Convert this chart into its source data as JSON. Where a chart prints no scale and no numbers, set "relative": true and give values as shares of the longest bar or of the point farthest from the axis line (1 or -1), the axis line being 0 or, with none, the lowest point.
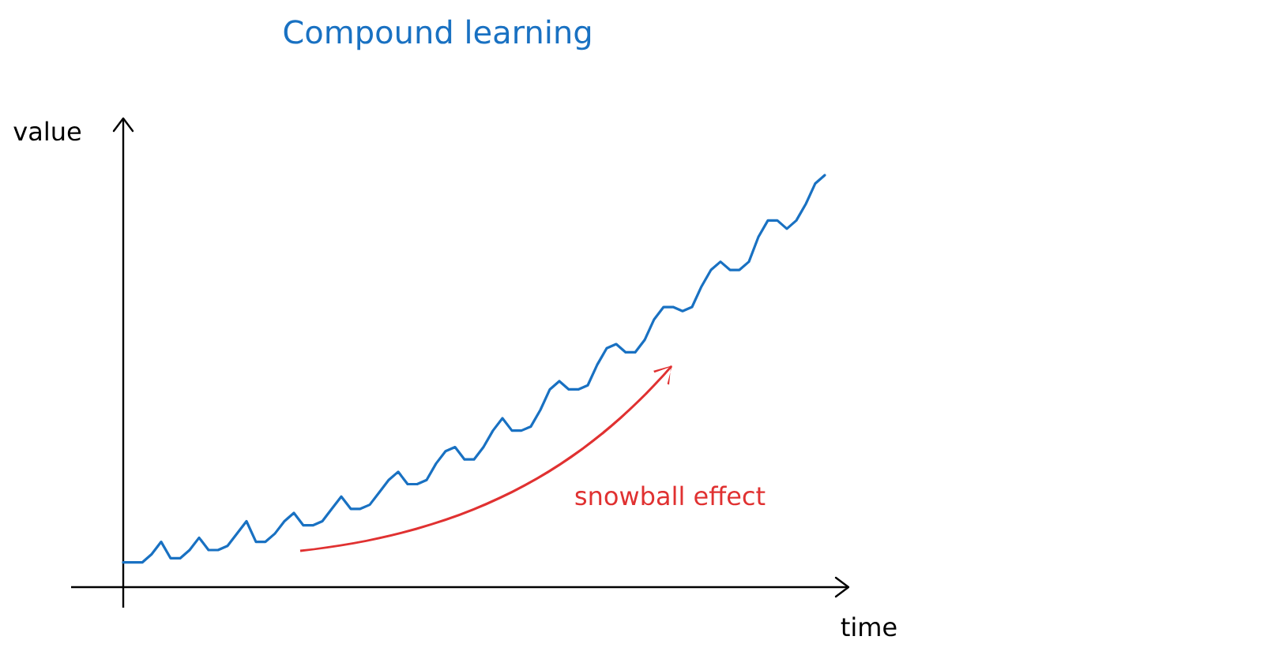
{
  "chart_data": {
    "type": "line",
    "title": "Compound learning",
    "xlabel": "time",
    "ylabel": "value",
    "relative": true,
    "categories": [
      null,
      null,
      null,
      null,
      null,
      null,
      null,
      null,
      null,
      null,
      null,
      null,
      null,
      null,
      null,
      null,
      null,
      null,
      null,
      null,
      null,
      null,
      null,
      null,
      null,
      null,
      null,
      null,
      null,
      null,
      null,
      null,
      null,
      null,
      null,
      null,
      null,
      null,
      null,
      null,
      null,
      null,
      null,
      null,
      null,
      null,
      null,
      null,
      null,
      null,
      null,
      null,
      null,
      null,
      null,
      null,
      null,
      null,
      null,
      null,
      null,
      null,
      null,
      null,
      null,
      null,
      null,
      null,
      null,
      null,
      null,
      null,
      null,
      null,
      null
    ],
    "series": [
      {
        "color": "#1971c2",
        "values": [
          0.06,
          0.06,
          0.06,
          0.08,
          0.11,
          0.07,
          0.07,
          0.09,
          0.12,
          0.09,
          0.09,
          0.1,
          0.13,
          0.16,
          0.11,
          0.11,
          0.13,
          0.16,
          0.18,
          0.15,
          0.15,
          0.16,
          0.19,
          0.22,
          0.19,
          0.19,
          0.2,
          0.23,
          0.26,
          0.28,
          0.25,
          0.25,
          0.26,
          0.3,
          0.33,
          0.34,
          0.31,
          0.31,
          0.34,
          0.38,
          0.41,
          0.38,
          0.38,
          0.39,
          0.43,
          0.48,
          0.5,
          0.48,
          0.48,
          0.49,
          0.54,
          0.58,
          0.59,
          0.57,
          0.57,
          0.6,
          0.65,
          0.68,
          0.68,
          0.67,
          0.68,
          0.73,
          0.77,
          0.79,
          0.77,
          0.77,
          0.79,
          0.85,
          0.89,
          0.89,
          0.87,
          0.89,
          0.93,
          0.98,
          1.0
        ]
      }
    ],
    "annotations": [
      "snowball effect"
    ]
  }
}
